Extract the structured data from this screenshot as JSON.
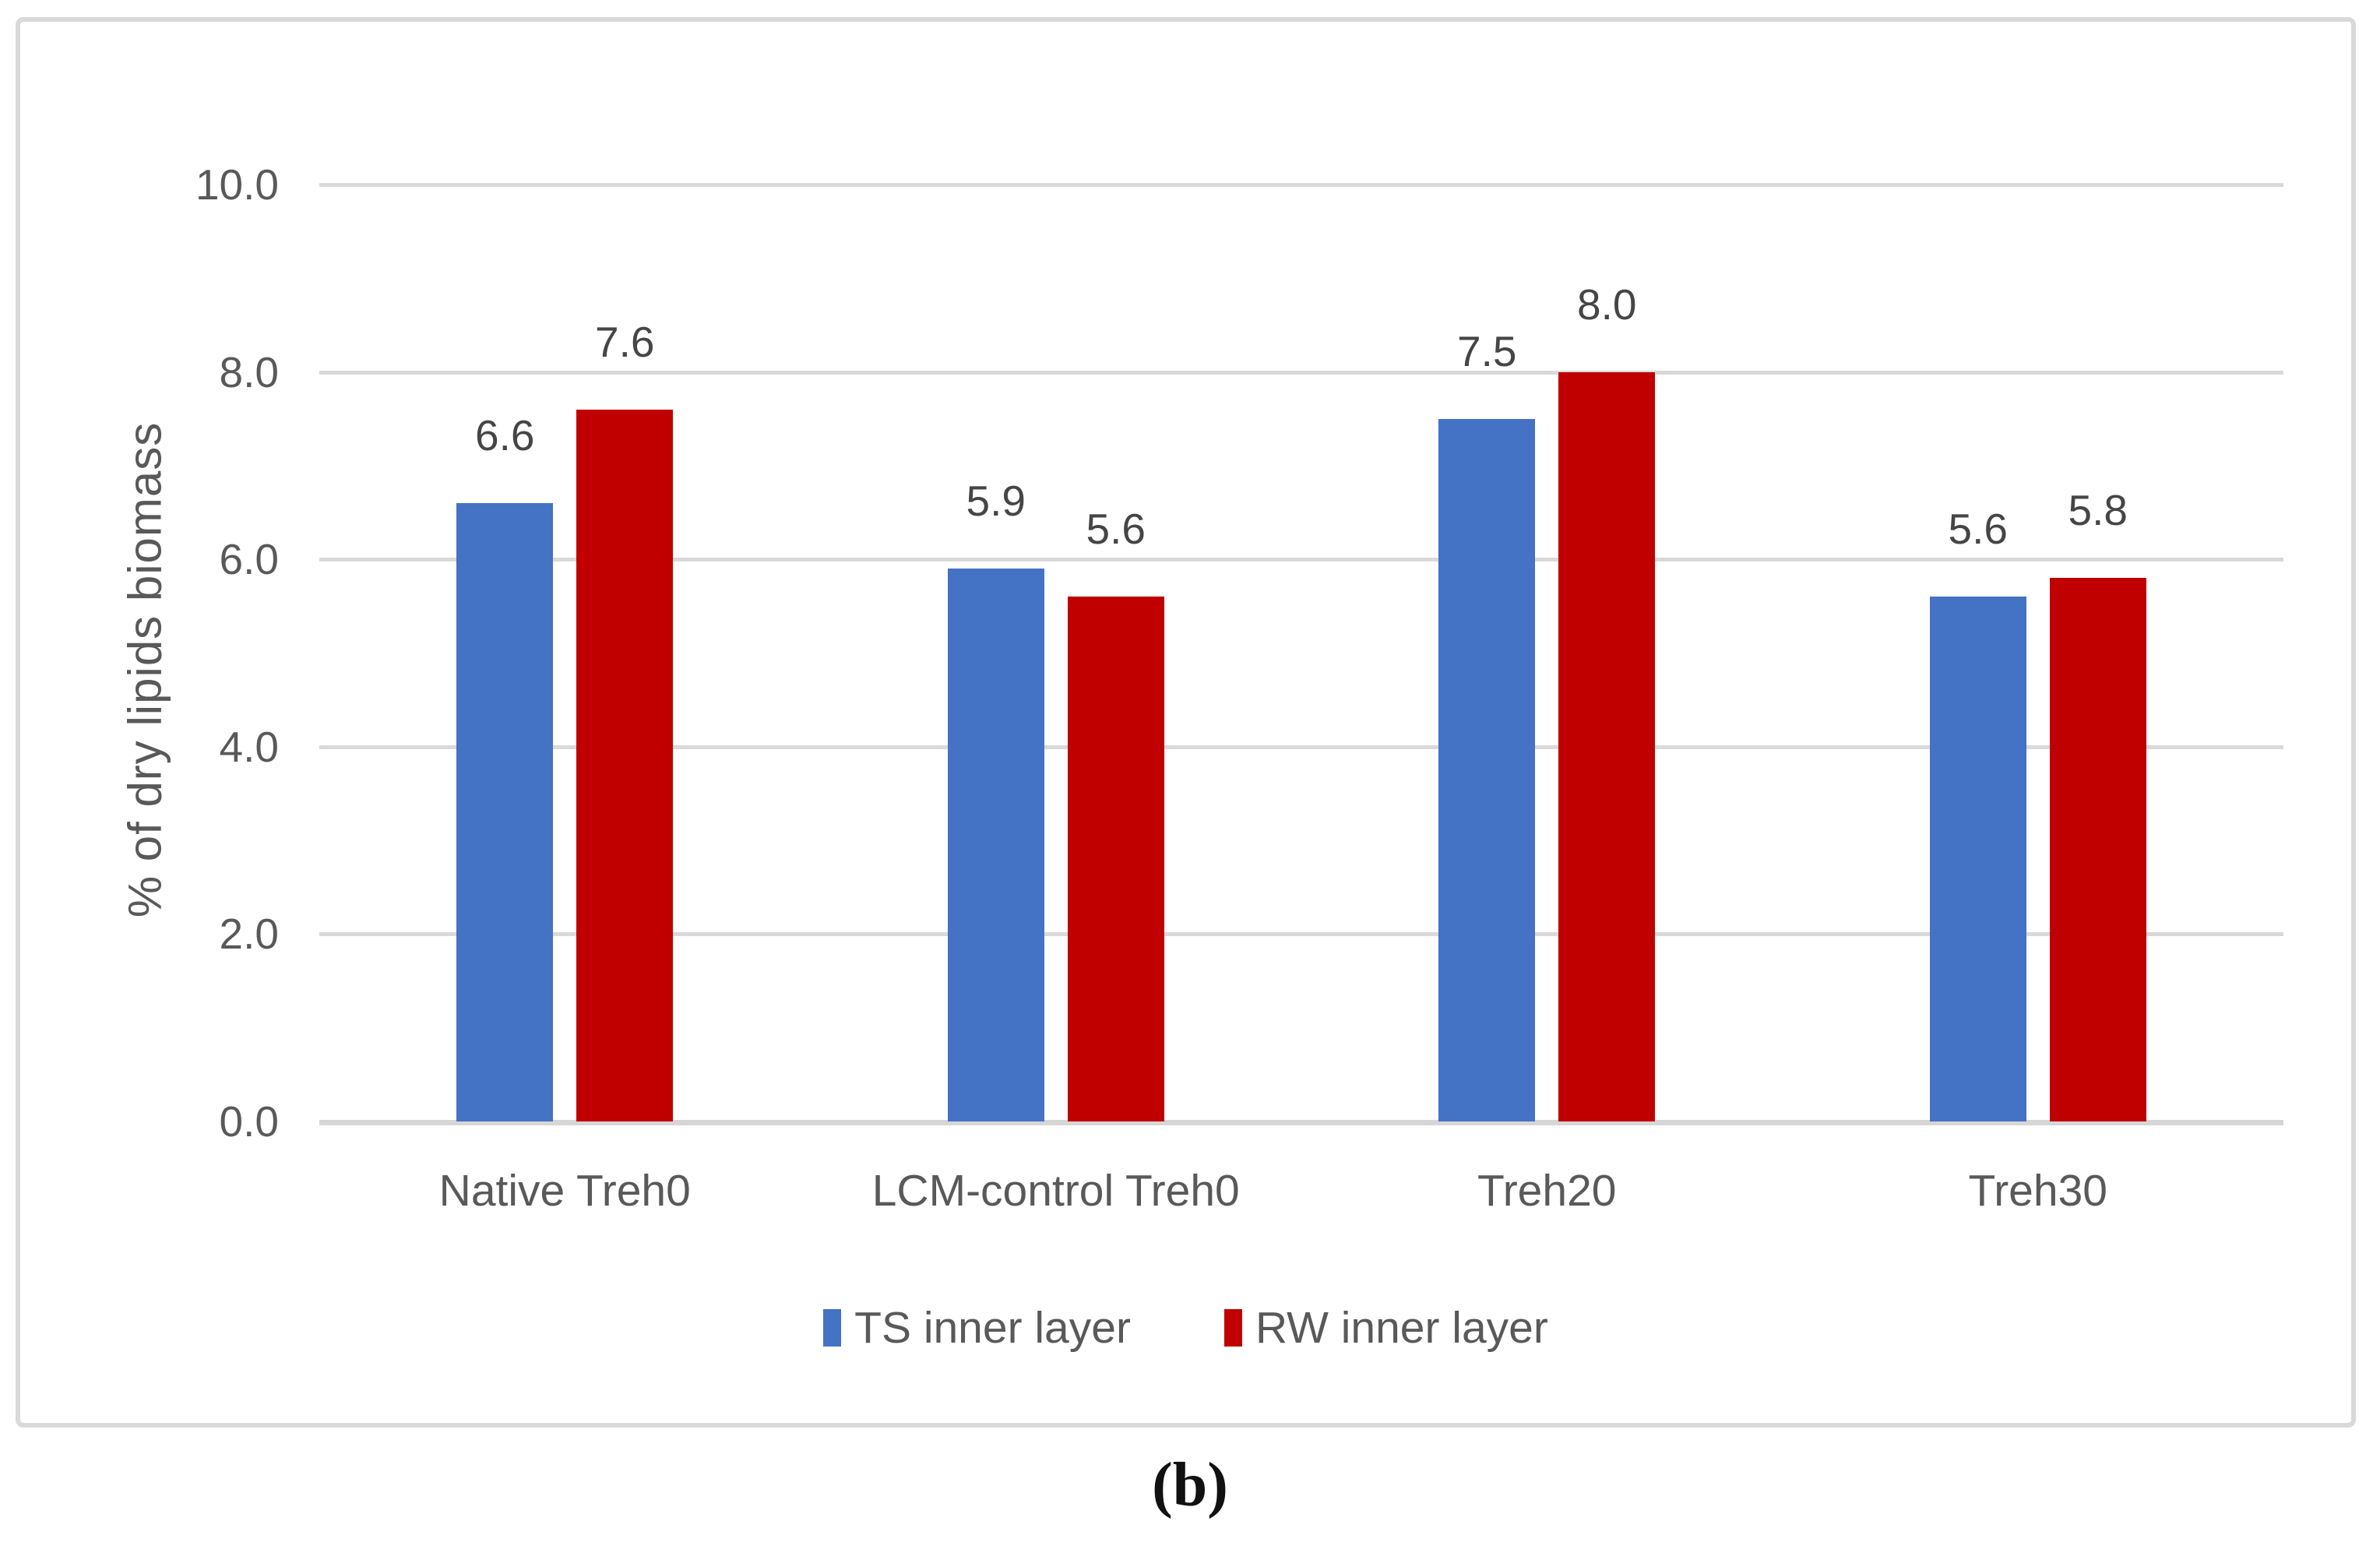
{
  "caption": "(b)",
  "colors": {
    "series_blue": "#4472C4",
    "series_red": "#C00000",
    "gridline": "#D9D9D9",
    "axis_text": "#595959",
    "data_label_text": "#454545",
    "figure_border": "#D9D9D9"
  },
  "chart_data": {
    "type": "bar",
    "title": "",
    "xlabel": "",
    "ylabel": "% of dry lipids biomass",
    "categories": [
      "Native Treh0",
      "LCM-control Treh0",
      "Treh20",
      "Treh30"
    ],
    "series": [
      {
        "name": "TS inner layer",
        "color": "#4472C4",
        "values": [
          6.6,
          5.9,
          7.5,
          5.6
        ]
      },
      {
        "name": "RW inner layer",
        "color": "#C00000",
        "values": [
          7.6,
          5.6,
          8.0,
          5.8
        ]
      }
    ],
    "ylim": [
      0,
      10
    ],
    "yticks": [
      "10.0",
      "8.0",
      "6.0",
      "4.0",
      "2.0",
      "0.0"
    ],
    "ytick_values": [
      10,
      8,
      6,
      4,
      2,
      0
    ],
    "grid": true,
    "legend_position": "bottom",
    "data_labels": true,
    "data_label_decimals": 1
  }
}
